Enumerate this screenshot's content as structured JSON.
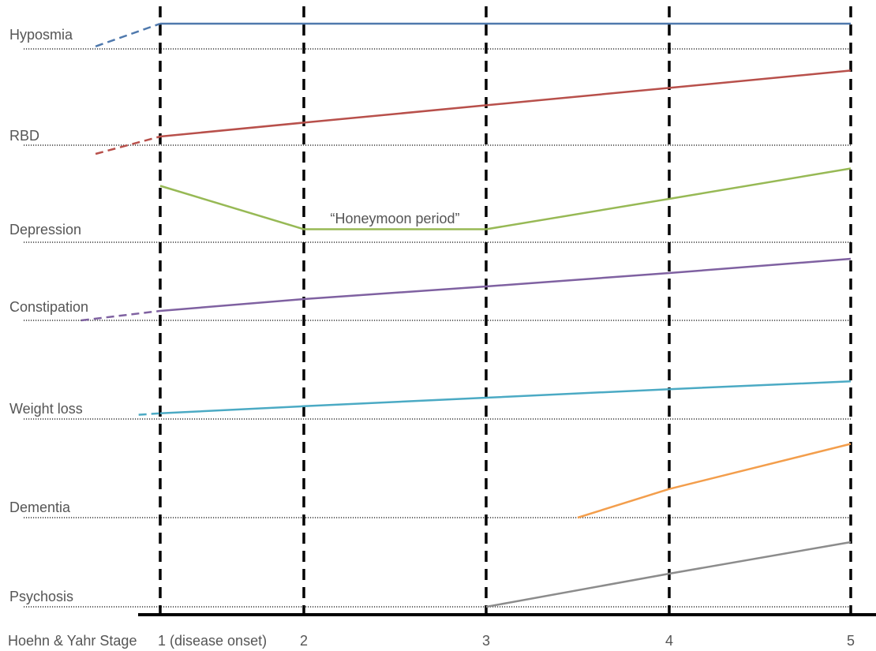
{
  "chart_data": {
    "type": "line",
    "title": "",
    "xlabel": "Hoehn & Yahr Stage",
    "x_ticks": [
      {
        "value": 1,
        "label": "1 (disease onset)"
      },
      {
        "value": 2,
        "label": "2"
      },
      {
        "value": 3,
        "label": "3"
      },
      {
        "value": 4,
        "label": "4"
      },
      {
        "value": 5,
        "label": "5"
      }
    ],
    "annotations": [
      {
        "text": "“Honeymoon period”",
        "series": "Depression",
        "x": 2.5
      }
    ],
    "series": [
      {
        "name": "Hyposmia",
        "color": "#4f79ad",
        "prodromal": [
          [
            0.55,
            0.1
          ],
          [
            1,
            1.0
          ]
        ],
        "points": [
          [
            1,
            1.0
          ],
          [
            5,
            1.0
          ]
        ]
      },
      {
        "name": "RBD",
        "color": "#b8504b",
        "prodromal": [
          [
            0.55,
            -0.1
          ],
          [
            1,
            0.1
          ]
        ],
        "points": [
          [
            1,
            0.1
          ],
          [
            2,
            0.26
          ],
          [
            3,
            0.46
          ],
          [
            4,
            0.66
          ],
          [
            5,
            0.86
          ]
        ]
      },
      {
        "name": "Depression",
        "color": "#97b955",
        "points": [
          [
            1,
            0.65
          ],
          [
            2,
            0.15
          ],
          [
            3,
            0.15
          ],
          [
            4,
            0.5
          ],
          [
            5,
            0.85
          ]
        ]
      },
      {
        "name": "Constipation",
        "color": "#7f61a1",
        "prodromal": [
          [
            0.45,
            0.0
          ],
          [
            1,
            0.12
          ]
        ],
        "points": [
          [
            1,
            0.12
          ],
          [
            2,
            0.27
          ],
          [
            3,
            0.43
          ],
          [
            4,
            0.6
          ],
          [
            5,
            0.78
          ]
        ]
      },
      {
        "name": "Weight loss",
        "color": "#4baac4",
        "prodromal": [
          [
            0.85,
            0.06
          ],
          [
            1,
            0.08
          ]
        ],
        "points": [
          [
            1,
            0.08
          ],
          [
            2,
            0.18
          ],
          [
            3,
            0.3
          ],
          [
            4,
            0.42
          ],
          [
            5,
            0.53
          ]
        ]
      },
      {
        "name": "Dementia",
        "color": "#f39e4c",
        "points": [
          [
            3.5,
            0.0
          ],
          [
            4,
            0.33
          ],
          [
            5,
            0.85
          ]
        ]
      },
      {
        "name": "Psychosis",
        "color": "#8c8c8c",
        "points": [
          [
            3,
            0.0
          ],
          [
            4,
            0.42
          ],
          [
            5,
            0.82
          ]
        ]
      }
    ]
  }
}
